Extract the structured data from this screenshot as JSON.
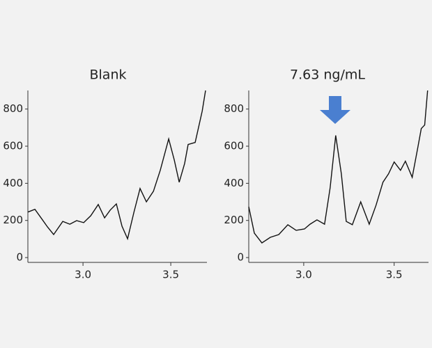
{
  "chart_data": [
    {
      "type": "line",
      "title": "Blank",
      "color": "#111111",
      "x": [
        2.686,
        2.726,
        2.766,
        2.798,
        2.833,
        2.885,
        2.925,
        2.964,
        3.004,
        3.044,
        3.087,
        3.123,
        3.155,
        3.19,
        3.222,
        3.254,
        3.29,
        3.325,
        3.361,
        3.401,
        3.44,
        3.488,
        3.52,
        3.548,
        3.579,
        3.599,
        3.639,
        3.679,
        3.698
      ],
      "values": [
        245,
        260,
        207,
        165,
        124,
        195,
        180,
        199,
        188,
        225,
        286,
        214,
        256,
        289,
        169,
        101,
        244,
        372,
        300,
        357,
        470,
        639,
        526,
        406,
        507,
        609,
        620,
        789,
        900
      ],
      "xlim": [
        2.686,
        3.706
      ],
      "ylim": [
        -26,
        900
      ],
      "xticks": [
        3.0,
        3.5
      ],
      "yticks": [
        0,
        200,
        400,
        600,
        800
      ]
    },
    {
      "type": "line",
      "title": "7.63 ng/mL",
      "color": "#111111",
      "x": [
        2.696,
        2.727,
        2.769,
        2.815,
        2.862,
        2.912,
        2.958,
        3.004,
        3.035,
        3.073,
        3.115,
        3.146,
        3.177,
        3.208,
        3.235,
        3.269,
        3.315,
        3.362,
        3.4,
        3.438,
        3.469,
        3.5,
        3.535,
        3.562,
        3.6,
        3.631,
        3.65,
        3.669,
        3.685
      ],
      "values": [
        274,
        132,
        79,
        109,
        124,
        177,
        147,
        154,
        180,
        203,
        180,
        376,
        658,
        451,
        195,
        177,
        300,
        180,
        282,
        406,
        451,
        515,
        470,
        519,
        432,
        594,
        695,
        714,
        900
      ],
      "xlim": [
        2.696,
        3.69
      ],
      "ylim": [
        -26,
        900
      ],
      "xticks": [
        3.0,
        3.5
      ],
      "yticks": [
        0,
        200,
        400,
        600,
        800
      ]
    }
  ]
}
